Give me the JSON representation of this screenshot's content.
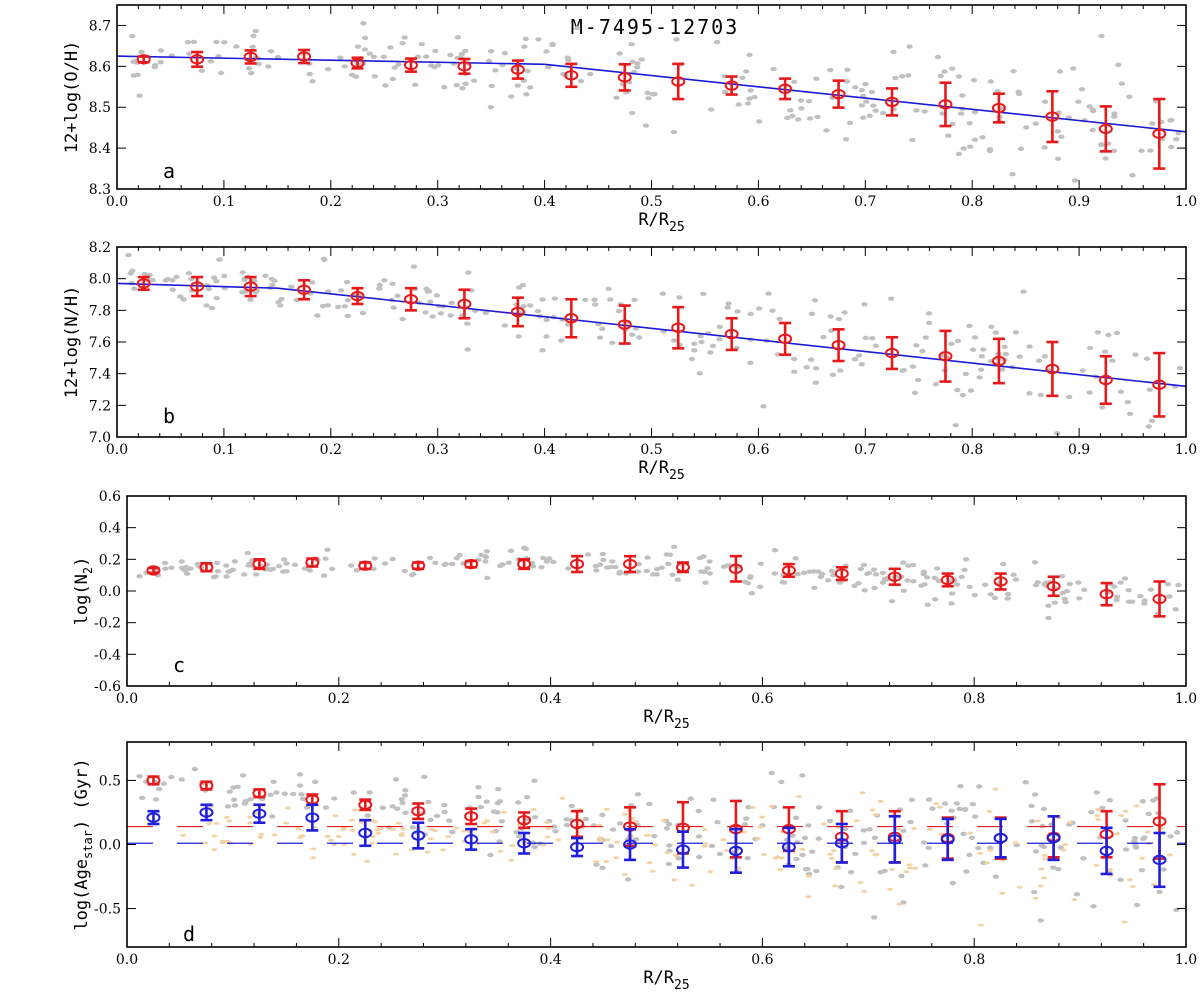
{
  "figure_title": "M-7495-12703",
  "colors": {
    "data_points": "#c0c0c0",
    "gas_points": "#c0c0c0",
    "star_points": "#f3d2a4",
    "red": "#e8191b",
    "blue": "#1f1fdc",
    "fit": "#1a1ad8"
  },
  "chart_data": [
    {
      "type": "scatter",
      "panel": "a",
      "xlabel": "R/R",
      "xlabel_sub": "25",
      "ylabel": "12+log(O/H)",
      "xlim": [
        0.0,
        1.0
      ],
      "ylim": [
        8.3,
        8.75
      ],
      "xticks": [
        0.0,
        0.1,
        0.2,
        0.3,
        0.4,
        0.5,
        0.6,
        0.7,
        0.8,
        0.9,
        1.0
      ],
      "xtick_labels": [
        "0.0",
        "0.1",
        "0.2",
        "0.3",
        "0.4",
        "0.5",
        "0.6",
        "0.7",
        "0.8",
        "0.9",
        "1.0"
      ],
      "yticks": [
        8.3,
        8.4,
        8.5,
        8.6,
        8.7
      ],
      "ytick_labels": [
        "8.3",
        "8.4",
        "8.5",
        "8.6",
        "8.7"
      ],
      "scatter_trend": [
        [
          0.0,
          8.62
        ],
        [
          0.4,
          8.6
        ],
        [
          0.6,
          8.55
        ],
        [
          1.0,
          8.45
        ]
      ],
      "scatter_spread": 0.05,
      "fit_line": [
        [
          0.0,
          8.625
        ],
        [
          0.4,
          8.605
        ],
        [
          1.0,
          8.44
        ]
      ],
      "series": [
        {
          "name": "binned",
          "color": "red",
          "x": [
            0.025,
            0.075,
            0.125,
            0.175,
            0.225,
            0.275,
            0.325,
            0.375,
            0.425,
            0.475,
            0.525,
            0.575,
            0.625,
            0.675,
            0.725,
            0.775,
            0.825,
            0.875,
            0.925,
            0.975
          ],
          "y": [
            8.617,
            8.617,
            8.623,
            8.624,
            8.608,
            8.603,
            8.6,
            8.592,
            8.578,
            8.573,
            8.563,
            8.553,
            8.545,
            8.532,
            8.513,
            8.507,
            8.498,
            8.477,
            8.447,
            8.435
          ],
          "err": [
            0.007,
            0.018,
            0.016,
            0.016,
            0.013,
            0.016,
            0.018,
            0.022,
            0.028,
            0.032,
            0.043,
            0.022,
            0.025,
            0.033,
            0.033,
            0.053,
            0.035,
            0.062,
            0.055,
            0.085
          ]
        }
      ]
    },
    {
      "type": "scatter",
      "panel": "b",
      "xlabel": "R/R",
      "xlabel_sub": "25",
      "ylabel": "12+log(N/H)",
      "xlim": [
        0.0,
        1.0
      ],
      "ylim": [
        7.0,
        8.2
      ],
      "xticks": [
        0.0,
        0.1,
        0.2,
        0.3,
        0.4,
        0.5,
        0.6,
        0.7,
        0.8,
        0.9,
        1.0
      ],
      "xtick_labels": [
        "0.0",
        "0.1",
        "0.2",
        "0.3",
        "0.4",
        "0.5",
        "0.6",
        "0.7",
        "0.8",
        "0.9",
        "1.0"
      ],
      "yticks": [
        7.0,
        7.2,
        7.4,
        7.6,
        7.8,
        8.0,
        8.2
      ],
      "ytick_labels": [
        "7.0",
        "7.2",
        "7.4",
        "7.6",
        "7.8",
        "8.0",
        "8.2"
      ],
      "scatter_trend": [
        [
          0.0,
          7.97
        ],
        [
          0.15,
          7.94
        ],
        [
          0.4,
          7.76
        ],
        [
          1.0,
          7.32
        ]
      ],
      "scatter_spread": 0.13,
      "fit_line": [
        [
          0.0,
          7.97
        ],
        [
          0.15,
          7.94
        ],
        [
          0.4,
          7.76
        ],
        [
          1.0,
          7.32
        ]
      ],
      "series": [
        {
          "name": "binned",
          "color": "red",
          "x": [
            0.025,
            0.075,
            0.125,
            0.175,
            0.225,
            0.275,
            0.325,
            0.375,
            0.425,
            0.475,
            0.525,
            0.575,
            0.625,
            0.675,
            0.725,
            0.775,
            0.825,
            0.875,
            0.925,
            0.975
          ],
          "y": [
            7.97,
            7.95,
            7.95,
            7.93,
            7.89,
            7.87,
            7.84,
            7.79,
            7.75,
            7.71,
            7.69,
            7.65,
            7.62,
            7.58,
            7.53,
            7.51,
            7.48,
            7.43,
            7.36,
            7.33
          ],
          "err": [
            0.04,
            0.06,
            0.06,
            0.06,
            0.05,
            0.07,
            0.09,
            0.09,
            0.12,
            0.12,
            0.13,
            0.1,
            0.1,
            0.1,
            0.1,
            0.16,
            0.14,
            0.17,
            0.15,
            0.2
          ]
        }
      ]
    },
    {
      "type": "scatter",
      "panel": "c",
      "xlabel": "R/R",
      "xlabel_sub": "25",
      "ylabel": "log(N",
      "ylabel_sub": "2",
      "ylabel_end": ")",
      "xlim": [
        0.0,
        1.0
      ],
      "ylim": [
        -0.6,
        0.6
      ],
      "xticks": [
        0.0,
        0.2,
        0.4,
        0.6,
        0.8,
        1.0
      ],
      "xtick_labels": [
        "0.0",
        "0.2",
        "0.4",
        "0.6",
        "0.8",
        "1.0"
      ],
      "yticks": [
        -0.6,
        -0.4,
        -0.2,
        0.0,
        0.2,
        0.4,
        0.6
      ],
      "ytick_labels": [
        "-0.6",
        "-0.4",
        "-0.2",
        "0.0",
        "0.2",
        "0.4",
        "0.6"
      ],
      "scatter_trend": [
        [
          0.05,
          0.14
        ],
        [
          0.4,
          0.17
        ],
        [
          0.6,
          0.14
        ],
        [
          1.0,
          -0.05
        ]
      ],
      "scatter_spread": 0.05,
      "series": [
        {
          "name": "binned",
          "color": "red",
          "x": [
            0.025,
            0.075,
            0.125,
            0.175,
            0.225,
            0.275,
            0.325,
            0.375,
            0.425,
            0.475,
            0.525,
            0.575,
            0.625,
            0.675,
            0.725,
            0.775,
            0.825,
            0.875,
            0.925,
            0.975
          ],
          "y": [
            0.13,
            0.15,
            0.17,
            0.18,
            0.16,
            0.16,
            0.17,
            0.17,
            0.17,
            0.17,
            0.15,
            0.14,
            0.13,
            0.11,
            0.09,
            0.07,
            0.06,
            0.03,
            -0.02,
            -0.05
          ],
          "err": [
            0.015,
            0.025,
            0.03,
            0.025,
            0.02,
            0.02,
            0.02,
            0.03,
            0.05,
            0.05,
            0.03,
            0.08,
            0.04,
            0.04,
            0.05,
            0.04,
            0.05,
            0.06,
            0.07,
            0.11
          ]
        }
      ]
    },
    {
      "type": "scatter",
      "panel": "d",
      "xlabel": "R/R",
      "xlabel_sub": "25",
      "ylabel": "log(Age",
      "ylabel_sub": "star",
      "ylabel_end": ")   (Gyr)",
      "xlim": [
        0.0,
        1.0
      ],
      "ylim": [
        -0.8,
        0.8
      ],
      "xticks": [
        0.0,
        0.2,
        0.4,
        0.6,
        0.8,
        1.0
      ],
      "xtick_labels": [
        "0.0",
        "0.2",
        "0.4",
        "0.6",
        "0.8",
        "1.0"
      ],
      "yticks": [
        -0.5,
        0.0,
        0.5
      ],
      "ytick_labels": [
        "-0.5",
        "0.0",
        "0.5"
      ],
      "scatter_trend": [
        [
          0.05,
          0.45
        ],
        [
          0.3,
          0.25
        ],
        [
          0.5,
          0.05
        ],
        [
          1.0,
          0.05
        ]
      ],
      "scatter_spread": 0.18,
      "star_trend": [
        [
          0.1,
          0.1
        ],
        [
          0.4,
          0.05
        ],
        [
          0.6,
          -0.05
        ],
        [
          1.0,
          -0.05
        ]
      ],
      "star_spread": 0.2,
      "hlines": [
        {
          "y": 0.14,
          "color": "red"
        },
        {
          "y": 0.01,
          "color": "blue"
        }
      ],
      "series": [
        {
          "name": "red_binned",
          "color": "red",
          "x": [
            0.025,
            0.075,
            0.125,
            0.175,
            0.225,
            0.275,
            0.325,
            0.375,
            0.425,
            0.475,
            0.525,
            0.575,
            0.625,
            0.675,
            0.725,
            0.775,
            0.825,
            0.875,
            0.925,
            0.975
          ],
          "y": [
            0.5,
            0.46,
            0.4,
            0.35,
            0.31,
            0.26,
            0.22,
            0.19,
            0.16,
            0.14,
            0.13,
            0.12,
            0.12,
            0.06,
            0.06,
            0.05,
            0.05,
            0.06,
            0.08,
            0.18
          ],
          "err": [
            0.03,
            0.03,
            0.03,
            0.04,
            0.04,
            0.06,
            0.06,
            0.06,
            0.1,
            0.15,
            0.2,
            0.22,
            0.17,
            0.2,
            0.2,
            0.16,
            0.16,
            0.16,
            0.18,
            0.29
          ]
        },
        {
          "name": "blue_binned",
          "color": "blue",
          "x": [
            0.025,
            0.075,
            0.125,
            0.175,
            0.225,
            0.275,
            0.325,
            0.375,
            0.425,
            0.475,
            0.525,
            0.575,
            0.625,
            0.675,
            0.725,
            0.775,
            0.825,
            0.875,
            0.925,
            0.975
          ],
          "y": [
            0.21,
            0.25,
            0.24,
            0.21,
            0.09,
            0.07,
            0.04,
            0.01,
            -0.02,
            0.0,
            -0.04,
            -0.05,
            -0.02,
            0.01,
            0.04,
            0.04,
            0.05,
            0.05,
            -0.05,
            -0.12
          ],
          "err": [
            0.05,
            0.06,
            0.07,
            0.1,
            0.1,
            0.1,
            0.08,
            0.08,
            0.07,
            0.12,
            0.14,
            0.17,
            0.15,
            0.15,
            0.18,
            0.16,
            0.15,
            0.17,
            0.18,
            0.21
          ]
        }
      ]
    }
  ]
}
